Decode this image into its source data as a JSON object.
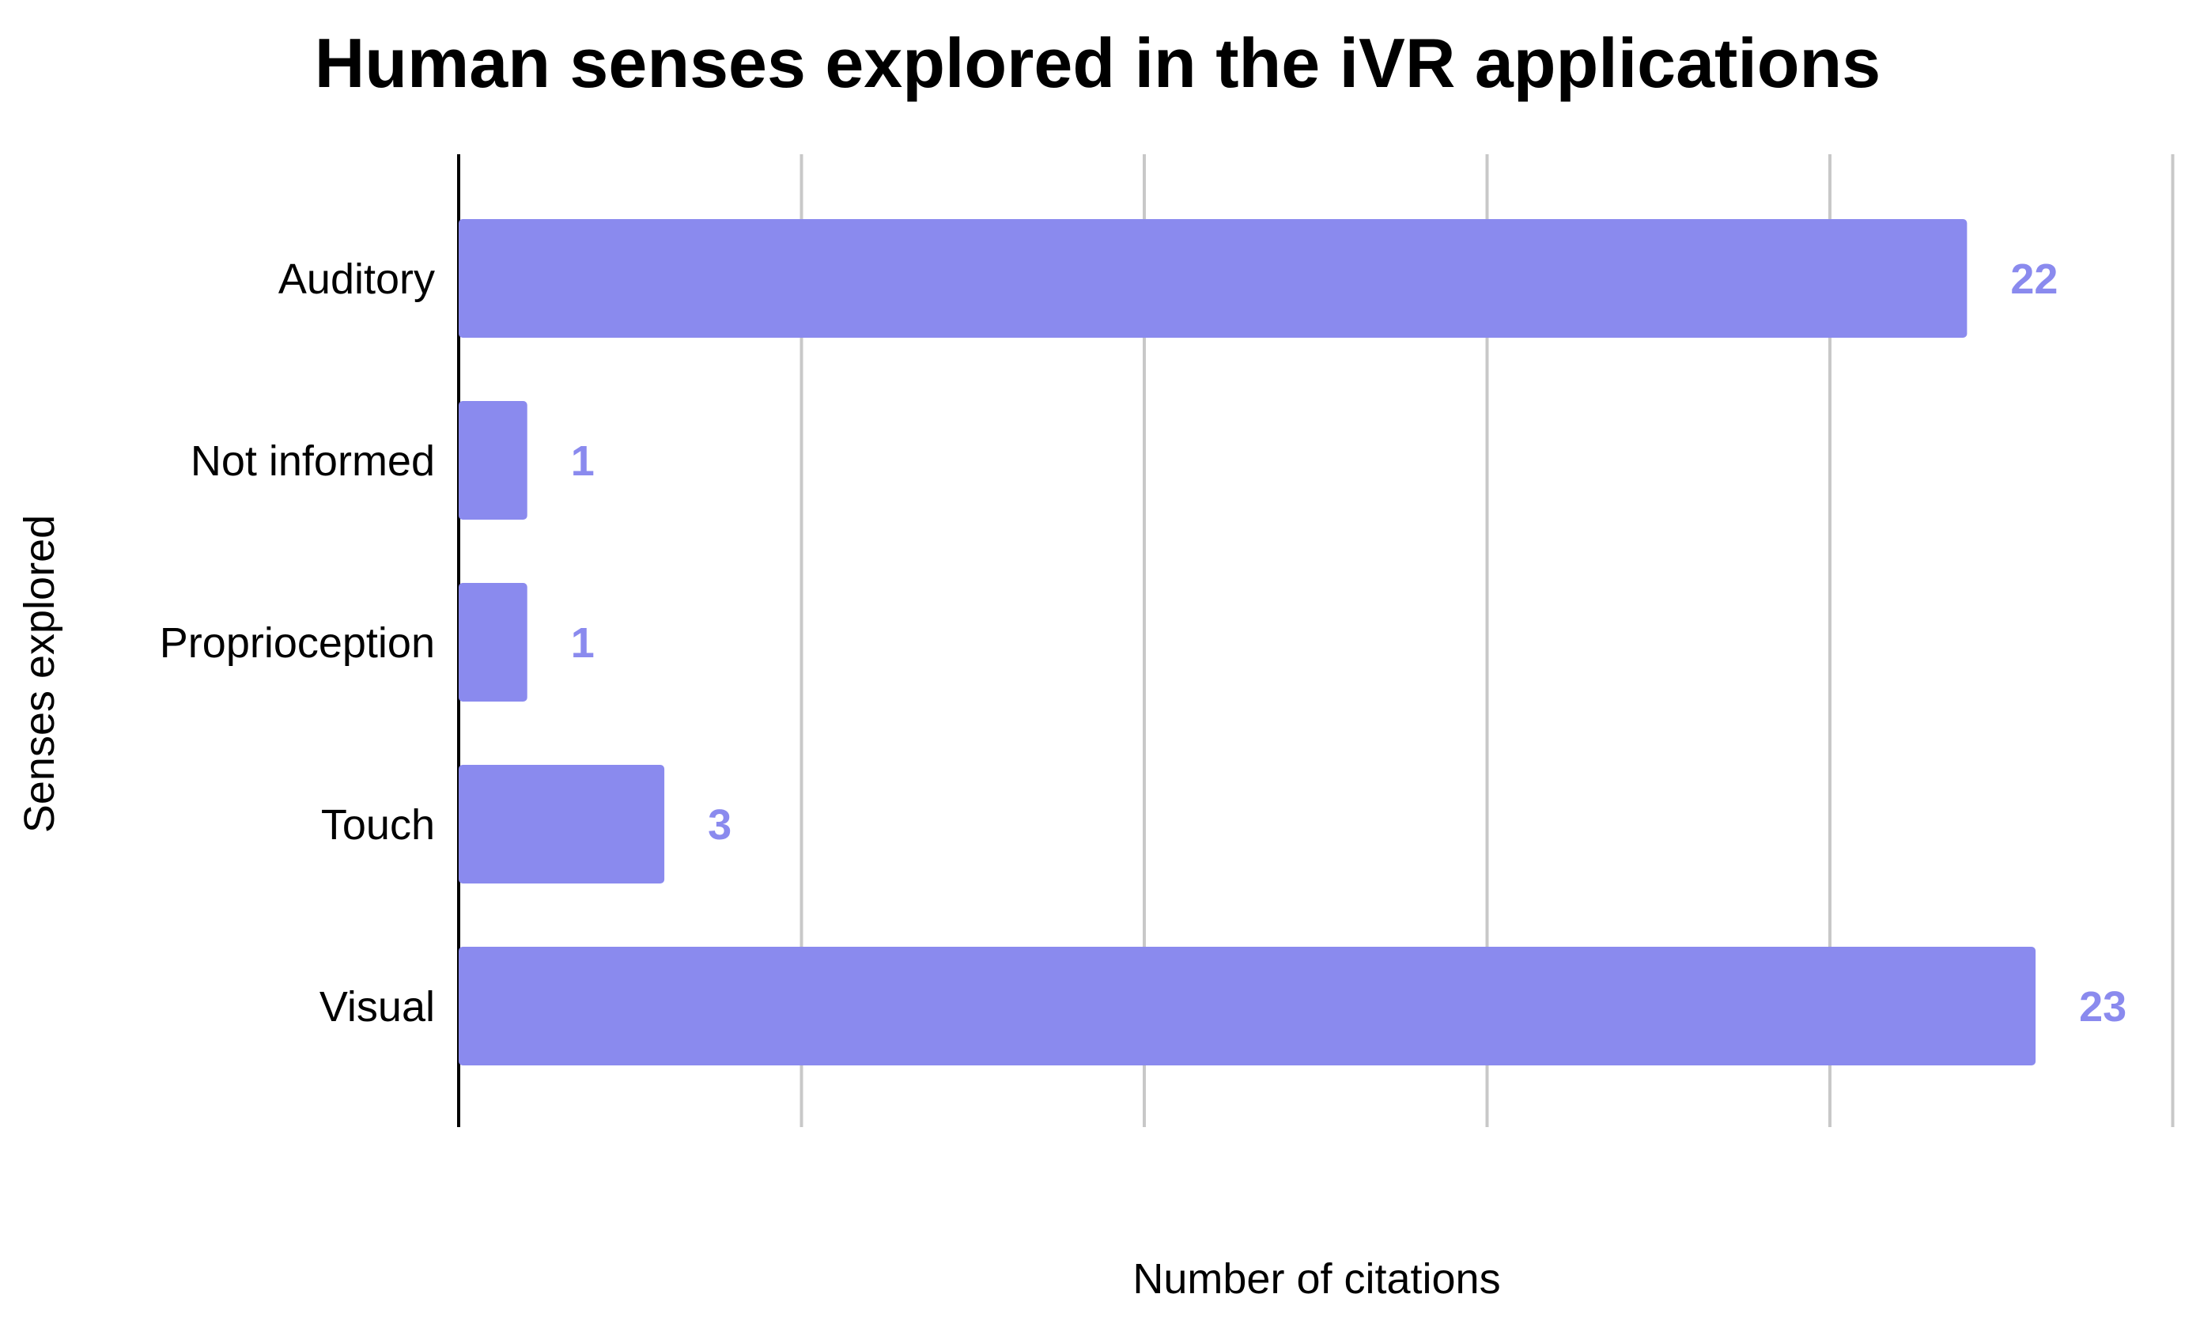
{
  "chart_data": {
    "type": "bar",
    "orientation": "horizontal",
    "title": "Human senses explored in the iVR applications",
    "xlabel": "Number of citations",
    "ylabel": "Senses explored",
    "categories": [
      "Auditory",
      "Not informed",
      "Proprioception",
      "Touch",
      "Visual"
    ],
    "series": [
      {
        "values": [
          22,
          1,
          1,
          3,
          23
        ]
      }
    ],
    "xlim": [
      0,
      25
    ],
    "gridlines": [
      0,
      5,
      10,
      15,
      20,
      25
    ],
    "grid": "vertical",
    "tick_labels_visible": false,
    "data_labels_visible": true,
    "legend": "none",
    "colors": {
      "bar": "#8a8aee",
      "label": "#8a8aee"
    }
  }
}
